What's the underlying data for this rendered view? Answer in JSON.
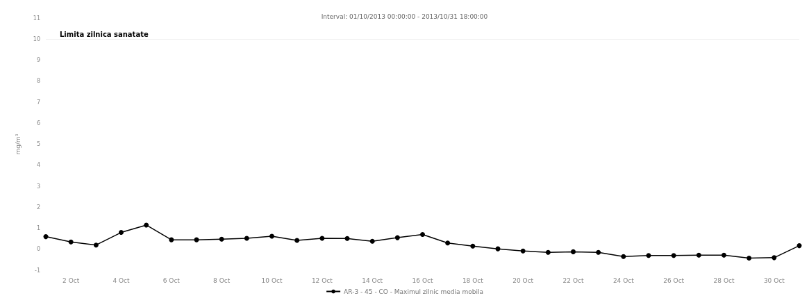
{
  "chart_data": {
    "type": "line",
    "title": "Interval: 01/10/2013 00:00:00 - 2013/10/31 18:00:00",
    "ylabel": "mg/m³",
    "x": [
      "--10-01",
      "--10-02",
      "--10-03",
      "--10-04",
      "--10-05",
      "--10-06",
      "--10-07",
      "--10-08",
      "--10-09",
      "--10-10",
      "--10-11",
      "--10-12",
      "--10-13",
      "--10-14",
      "--10-15",
      "--10-16",
      "--10-17",
      "--10-18",
      "--10-19",
      "--10-20",
      "--10-21",
      "--10-22",
      "--10-23",
      "--10-24",
      "--10-25",
      "--10-26",
      "--10-27",
      "--10-28",
      "--10-29",
      "--10-30",
      "--10-31"
    ],
    "series": [
      {
        "name": "AR-3 - 45 - CO - Maximul zilnic media mobila",
        "color": "#000000",
        "values": [
          0.6,
          0.35,
          0.2,
          0.8,
          1.15,
          0.45,
          0.45,
          0.48,
          0.52,
          0.62,
          0.42,
          0.52,
          0.51,
          0.38,
          0.55,
          0.7,
          0.3,
          0.15,
          0.02,
          -0.08,
          -0.15,
          -0.12,
          -0.15,
          -0.35,
          -0.3,
          -0.3,
          -0.28,
          -0.28,
          -0.42,
          -0.4,
          0.17
        ]
      }
    ],
    "xlim": [
      "--10-01",
      "--10-31"
    ],
    "xticks": [
      {
        "value": "--10-02",
        "label": "2 Oct"
      },
      {
        "value": "--10-04",
        "label": "4 Oct"
      },
      {
        "value": "--10-06",
        "label": "6 Oct"
      },
      {
        "value": "--10-08",
        "label": "8 Oct"
      },
      {
        "value": "--10-10",
        "label": "10 Oct"
      },
      {
        "value": "--10-12",
        "label": "12 Oct"
      },
      {
        "value": "--10-14",
        "label": "14 Oct"
      },
      {
        "value": "--10-16",
        "label": "16 Oct"
      },
      {
        "value": "--10-18",
        "label": "18 Oct"
      },
      {
        "value": "--10-20",
        "label": "20 Oct"
      },
      {
        "value": "--10-22",
        "label": "22 Oct"
      },
      {
        "value": "--10-24",
        "label": "24 Oct"
      },
      {
        "value": "--10-26",
        "label": "26 Oct"
      },
      {
        "value": "--10-28",
        "label": "28 Oct"
      },
      {
        "value": "--10-30",
        "label": "30 Oct"
      }
    ],
    "ylim": [
      -1,
      11
    ],
    "yticks": [
      -1,
      0,
      1,
      2,
      3,
      4,
      5,
      6,
      7,
      8,
      9,
      10,
      11
    ],
    "ref_lines": [
      {
        "axis": "y",
        "value": 10,
        "label": "Limita zilnica sanatate",
        "color": "#eeeeee"
      }
    ],
    "legend": "bottom",
    "marker": "circle",
    "line_style": "solid",
    "grid": false
  }
}
